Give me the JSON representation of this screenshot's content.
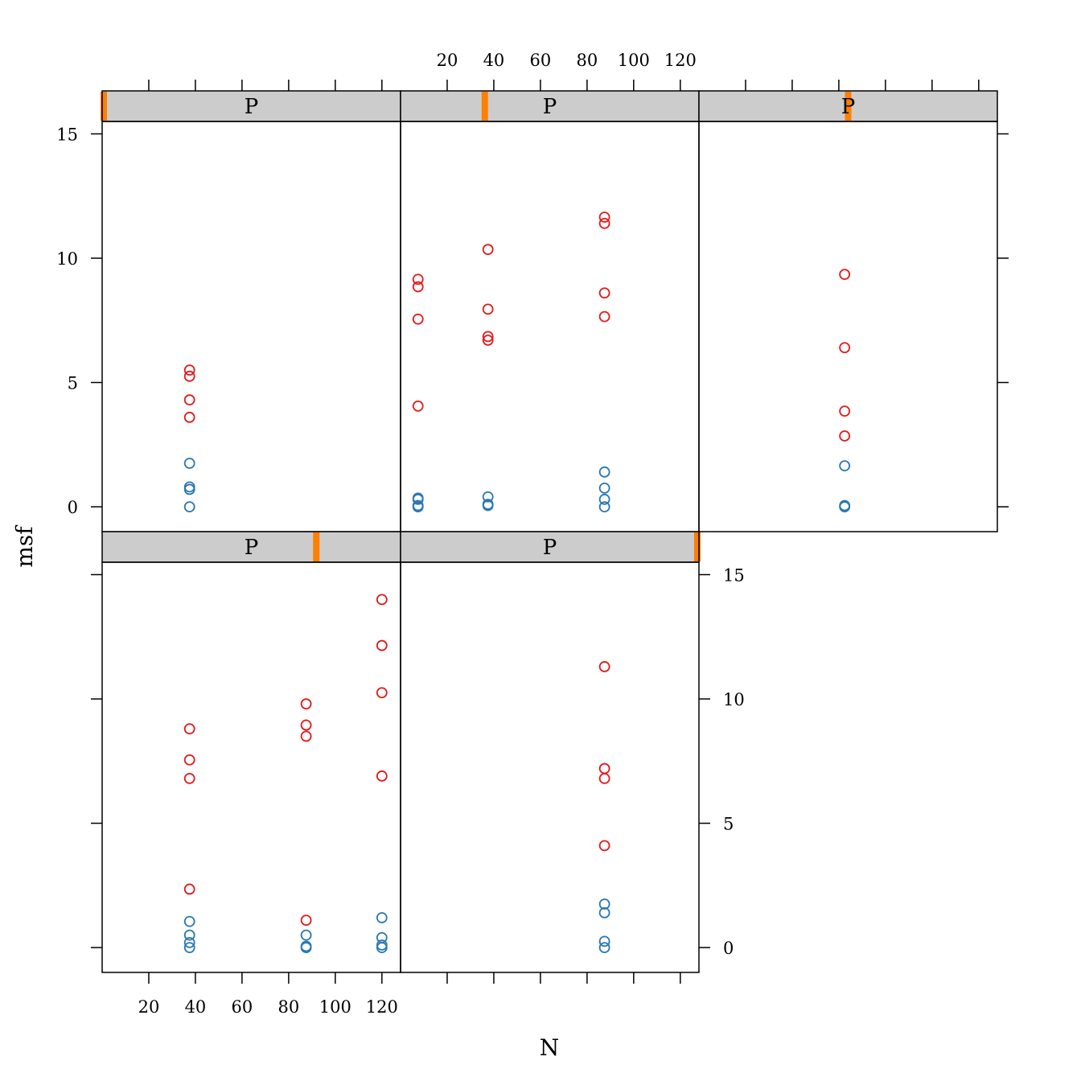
{
  "chart_data": {
    "type": "scatter",
    "layout": "trellis",
    "xlabel": "N",
    "ylabel": "msf",
    "xlim": [
      0,
      128
    ],
    "ylim": [
      -1,
      15.5
    ],
    "x_ticks": [
      20,
      40,
      60,
      80,
      100,
      120
    ],
    "y_ticks": [
      0,
      5,
      10,
      15
    ],
    "strip_label": "P",
    "colors": {
      "series_red": "#e31a1c",
      "series_blue": "#2a78b4",
      "strip_bg": "#cccccc",
      "strip_indicator": "#ff7f00"
    },
    "panels": [
      {
        "strip": "P",
        "indicator_fraction": 0.0,
        "points": [
          {
            "x": 37.5,
            "y": 5.5,
            "group": "red"
          },
          {
            "x": 37.5,
            "y": 5.25,
            "group": "red"
          },
          {
            "x": 37.5,
            "y": 4.3,
            "group": "red"
          },
          {
            "x": 37.5,
            "y": 3.6,
            "group": "red"
          },
          {
            "x": 37.5,
            "y": 1.75,
            "group": "blue"
          },
          {
            "x": 37.5,
            "y": 0.8,
            "group": "blue"
          },
          {
            "x": 37.5,
            "y": 0.7,
            "group": "blue"
          },
          {
            "x": 37.5,
            "y": 0.0,
            "group": "blue"
          }
        ]
      },
      {
        "strip": "P",
        "indicator_fraction": 0.28,
        "points": [
          {
            "x": 7.5,
            "y": 9.15,
            "group": "red"
          },
          {
            "x": 7.5,
            "y": 8.85,
            "group": "red"
          },
          {
            "x": 7.5,
            "y": 7.55,
            "group": "red"
          },
          {
            "x": 7.5,
            "y": 4.05,
            "group": "red"
          },
          {
            "x": 7.5,
            "y": 0.35,
            "group": "blue"
          },
          {
            "x": 7.5,
            "y": 0.3,
            "group": "blue"
          },
          {
            "x": 7.5,
            "y": 0.05,
            "group": "blue"
          },
          {
            "x": 7.5,
            "y": 0.0,
            "group": "blue"
          },
          {
            "x": 37.5,
            "y": 10.35,
            "group": "red"
          },
          {
            "x": 37.5,
            "y": 7.95,
            "group": "red"
          },
          {
            "x": 37.5,
            "y": 6.85,
            "group": "red"
          },
          {
            "x": 37.5,
            "y": 6.7,
            "group": "red"
          },
          {
            "x": 37.5,
            "y": 0.4,
            "group": "blue"
          },
          {
            "x": 37.5,
            "y": 0.1,
            "group": "blue"
          },
          {
            "x": 37.5,
            "y": 0.05,
            "group": "blue"
          },
          {
            "x": 87.5,
            "y": 11.65,
            "group": "red"
          },
          {
            "x": 87.5,
            "y": 11.4,
            "group": "red"
          },
          {
            "x": 87.5,
            "y": 8.6,
            "group": "red"
          },
          {
            "x": 87.5,
            "y": 7.65,
            "group": "red"
          },
          {
            "x": 87.5,
            "y": 1.4,
            "group": "blue"
          },
          {
            "x": 87.5,
            "y": 0.75,
            "group": "blue"
          },
          {
            "x": 87.5,
            "y": 0.3,
            "group": "blue"
          },
          {
            "x": 87.5,
            "y": 0.0,
            "group": "blue"
          }
        ]
      },
      {
        "strip": "P",
        "indicator_fraction": 0.5,
        "points": [
          {
            "x": 62.5,
            "y": 9.35,
            "group": "red"
          },
          {
            "x": 62.5,
            "y": 6.4,
            "group": "red"
          },
          {
            "x": 62.5,
            "y": 3.85,
            "group": "red"
          },
          {
            "x": 62.5,
            "y": 2.85,
            "group": "red"
          },
          {
            "x": 62.5,
            "y": 1.65,
            "group": "blue"
          },
          {
            "x": 62.5,
            "y": 0.05,
            "group": "blue"
          },
          {
            "x": 62.5,
            "y": 0.0,
            "group": "blue"
          }
        ]
      },
      {
        "strip": "P",
        "indicator_fraction": 0.72,
        "points": [
          {
            "x": 37.5,
            "y": 8.8,
            "group": "red"
          },
          {
            "x": 37.5,
            "y": 7.55,
            "group": "red"
          },
          {
            "x": 37.5,
            "y": 6.8,
            "group": "red"
          },
          {
            "x": 37.5,
            "y": 2.35,
            "group": "red"
          },
          {
            "x": 37.5,
            "y": 1.05,
            "group": "blue"
          },
          {
            "x": 37.5,
            "y": 0.5,
            "group": "blue"
          },
          {
            "x": 37.5,
            "y": 0.2,
            "group": "blue"
          },
          {
            "x": 37.5,
            "y": 0.0,
            "group": "blue"
          },
          {
            "x": 87.5,
            "y": 9.8,
            "group": "red"
          },
          {
            "x": 87.5,
            "y": 8.95,
            "group": "red"
          },
          {
            "x": 87.5,
            "y": 8.5,
            "group": "red"
          },
          {
            "x": 87.5,
            "y": 1.1,
            "group": "red"
          },
          {
            "x": 87.5,
            "y": 0.5,
            "group": "blue"
          },
          {
            "x": 87.5,
            "y": 0.05,
            "group": "blue"
          },
          {
            "x": 87.5,
            "y": 0.0,
            "group": "blue"
          },
          {
            "x": 120.0,
            "y": 14.0,
            "group": "red"
          },
          {
            "x": 120.0,
            "y": 12.15,
            "group": "red"
          },
          {
            "x": 120.0,
            "y": 10.25,
            "group": "red"
          },
          {
            "x": 120.0,
            "y": 6.9,
            "group": "red"
          },
          {
            "x": 120.0,
            "y": 1.2,
            "group": "blue"
          },
          {
            "x": 120.0,
            "y": 0.4,
            "group": "blue"
          },
          {
            "x": 120.0,
            "y": 0.1,
            "group": "blue"
          },
          {
            "x": 120.0,
            "y": 0.0,
            "group": "blue"
          }
        ]
      },
      {
        "strip": "P",
        "indicator_fraction": 1.0,
        "points": [
          {
            "x": 87.5,
            "y": 11.3,
            "group": "red"
          },
          {
            "x": 87.5,
            "y": 7.2,
            "group": "red"
          },
          {
            "x": 87.5,
            "y": 6.8,
            "group": "red"
          },
          {
            "x": 87.5,
            "y": 4.1,
            "group": "red"
          },
          {
            "x": 87.5,
            "y": 1.75,
            "group": "blue"
          },
          {
            "x": 87.5,
            "y": 1.4,
            "group": "blue"
          },
          {
            "x": 87.5,
            "y": 0.25,
            "group": "blue"
          },
          {
            "x": 87.5,
            "y": 0.0,
            "group": "blue"
          }
        ]
      }
    ]
  }
}
